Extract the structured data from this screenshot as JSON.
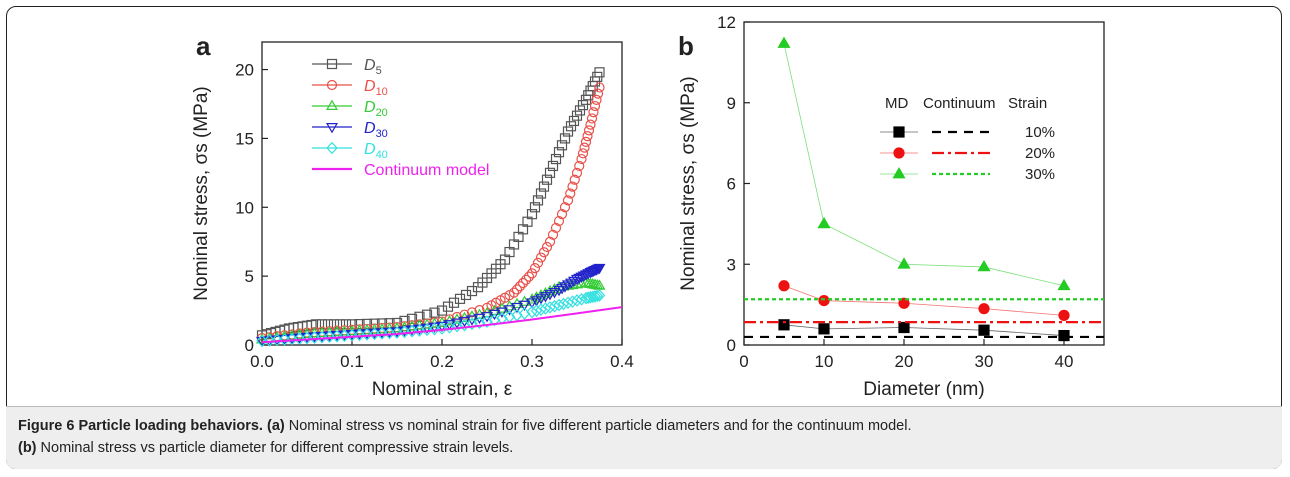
{
  "caption": {
    "label": "Figure 6",
    "title": "Particle loading behaviors.",
    "line1_tag": "(a)",
    "line1_text": "Nominal stress vs nominal strain for five different particle diameters and for the continuum model.",
    "line2_tag": "(b)",
    "line2_text": "Nominal stress vs particle diameter for different compressive strain levels."
  },
  "chart_data": [
    {
      "panel": "a",
      "type": "scatter",
      "xlabel": "Nominal strain, ε",
      "ylabel": "Nominal stress, σs (MPa)",
      "xlim": [
        0.0,
        0.4
      ],
      "ylim": [
        0,
        22
      ],
      "xticks": [
        "0.0",
        "0.1",
        "0.2",
        "0.3",
        "0.4"
      ],
      "yticks": [
        "0",
        "5",
        "10",
        "15",
        "20"
      ],
      "legend_position": "top-left",
      "series": [
        {
          "name": "D5",
          "base": "D",
          "sub": "5",
          "color": "#555555",
          "marker": "square",
          "x": [
            0,
            0.03,
            0.06,
            0.1,
            0.15,
            0.2,
            0.24,
            0.27,
            0.3,
            0.32,
            0.34,
            0.36,
            0.375
          ],
          "y": [
            0.7,
            1.2,
            1.5,
            1.5,
            1.6,
            2.5,
            4.2,
            6.2,
            9.5,
            12.5,
            15.5,
            17.8,
            19.8
          ]
        },
        {
          "name": "D10",
          "base": "D",
          "sub": "10",
          "color": "#e8504a",
          "marker": "circle",
          "x": [
            0,
            0.05,
            0.1,
            0.15,
            0.2,
            0.25,
            0.28,
            0.3,
            0.32,
            0.34,
            0.355,
            0.365,
            0.375
          ],
          "y": [
            0.5,
            0.9,
            1.1,
            1.3,
            1.7,
            2.7,
            3.8,
            5.2,
            7.5,
            10.5,
            13.5,
            16.0,
            18.7
          ]
        },
        {
          "name": "D20",
          "base": "D",
          "sub": "20",
          "color": "#33cc33",
          "marker": "triangle-up",
          "x": [
            0,
            0.05,
            0.1,
            0.15,
            0.2,
            0.25,
            0.3,
            0.33,
            0.36,
            0.375
          ],
          "y": [
            0.4,
            0.8,
            1.0,
            1.2,
            1.6,
            2.3,
            3.3,
            4.2,
            4.5,
            4.3
          ]
        },
        {
          "name": "D30",
          "base": "D",
          "sub": "30",
          "color": "#2222cc",
          "marker": "triangle-down",
          "x": [
            0,
            0.05,
            0.1,
            0.15,
            0.2,
            0.25,
            0.3,
            0.33,
            0.35,
            0.365,
            0.375
          ],
          "y": [
            0.3,
            0.6,
            0.8,
            1.0,
            1.4,
            2.1,
            3.1,
            4.0,
            4.8,
            5.3,
            5.6
          ]
        },
        {
          "name": "D40",
          "base": "D",
          "sub": "40",
          "color": "#33e0e0",
          "marker": "diamond",
          "x": [
            0,
            0.05,
            0.1,
            0.15,
            0.2,
            0.25,
            0.3,
            0.33,
            0.36,
            0.375
          ],
          "y": [
            0.3,
            0.5,
            0.7,
            0.9,
            1.2,
            1.7,
            2.4,
            2.9,
            3.4,
            3.6
          ]
        },
        {
          "name": "Continuum model",
          "color": "#ee22ee",
          "marker": "line",
          "x": [
            0,
            0.05,
            0.1,
            0.15,
            0.2,
            0.25,
            0.3,
            0.35,
            0.4
          ],
          "y": [
            0.2,
            0.4,
            0.6,
            0.8,
            1.1,
            1.45,
            1.85,
            2.3,
            2.75
          ]
        }
      ]
    },
    {
      "panel": "b",
      "type": "line",
      "xlabel": "Diameter (nm)",
      "ylabel": "Nominal stress, σs (MPa)",
      "xlim": [
        0,
        45
      ],
      "ylim": [
        0,
        12
      ],
      "xticks": [
        "0",
        "10",
        "20",
        "30",
        "40"
      ],
      "yticks": [
        "0",
        "3",
        "6",
        "9",
        "12"
      ],
      "legend_headers": [
        "MD",
        "Continuum",
        "Strain"
      ],
      "legend_position": "top-right",
      "series": [
        {
          "strain": "10%",
          "color": "#000000",
          "marker": "square",
          "x": [
            5,
            10,
            20,
            30,
            40
          ],
          "y": [
            0.75,
            0.6,
            0.65,
            0.55,
            0.35
          ],
          "continuum": 0.3,
          "dash": "9,7"
        },
        {
          "strain": "20%",
          "color": "#ee1111",
          "marker": "circle",
          "x": [
            5,
            10,
            20,
            30,
            40
          ],
          "y": [
            2.2,
            1.65,
            1.55,
            1.35,
            1.1
          ],
          "continuum": 0.85,
          "dash": "12,4,3,4"
        },
        {
          "strain": "30%",
          "color": "#22cc22",
          "marker": "triangle-up",
          "x": [
            5,
            10,
            20,
            30,
            40
          ],
          "y": [
            11.2,
            4.5,
            3.0,
            2.9,
            2.2
          ],
          "continuum": 1.7,
          "dash": "4,3"
        }
      ]
    }
  ]
}
